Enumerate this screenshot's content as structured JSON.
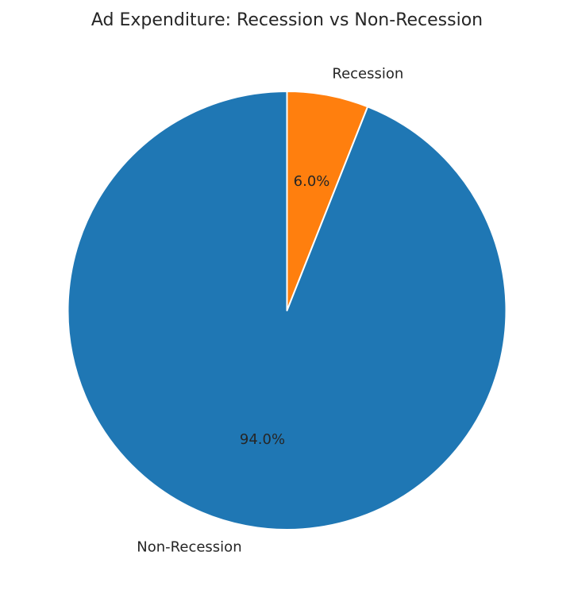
{
  "chart_data": {
    "type": "pie",
    "title": "Ad Expenditure: Recession vs Non-Recession",
    "slices": [
      {
        "label": "Recession",
        "value": 6.0,
        "pct_label": "6.0%",
        "color": "#ff7f0e"
      },
      {
        "label": "Non-Recession",
        "value": 94.0,
        "pct_label": "94.0%",
        "color": "#1f77b4"
      }
    ],
    "start_angle": "top",
    "direction": "clockwise",
    "edge_color": "#ffffff"
  }
}
